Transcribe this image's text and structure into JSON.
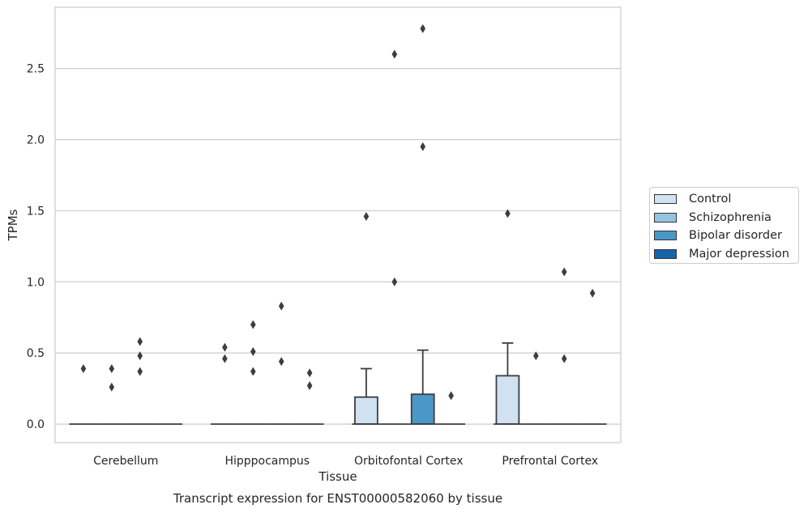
{
  "chart_data": {
    "type": "box",
    "title": "Transcript expression for ENST00000582060 by tissue",
    "xlabel": "Tissue",
    "ylabel": "TPMs",
    "ylim": [
      -0.13,
      2.93
    ],
    "yticks": [
      0.0,
      0.5,
      1.0,
      1.5,
      2.0,
      2.5
    ],
    "ytick_labels": [
      "0.0",
      "0.5",
      "1.0",
      "1.5",
      "2.0",
      "2.5"
    ],
    "grid": true,
    "legend_position": "right",
    "categories": [
      "Cerebellum",
      "Hipppocampus",
      "Orbitofontal Cortex",
      "Prefrontal Cortex"
    ],
    "series": [
      {
        "name": "Control",
        "color": "#d0e1f2",
        "boxes": [
          {
            "q1": 0,
            "median": 0,
            "q3": 0,
            "whisker_low": 0,
            "whisker_high": 0,
            "outliers": [
              0.39
            ]
          },
          {
            "q1": 0,
            "median": 0,
            "q3": 0,
            "whisker_low": 0,
            "whisker_high": 0,
            "outliers": [
              0.46,
              0.54
            ]
          },
          {
            "q1": 0,
            "median": 0,
            "q3": 0.19,
            "whisker_low": 0,
            "whisker_high": 0.39,
            "outliers": [
              1.46
            ]
          },
          {
            "q1": 0,
            "median": 0,
            "q3": 0.34,
            "whisker_low": 0,
            "whisker_high": 0.57,
            "outliers": [
              1.48
            ]
          }
        ]
      },
      {
        "name": "Schizophrenia",
        "color": "#94c4df",
        "boxes": [
          {
            "q1": 0,
            "median": 0,
            "q3": 0,
            "whisker_low": 0,
            "whisker_high": 0,
            "outliers": [
              0.26,
              0.39
            ]
          },
          {
            "q1": 0,
            "median": 0,
            "q3": 0,
            "whisker_low": 0,
            "whisker_high": 0,
            "outliers": [
              0.37,
              0.51,
              0.7
            ]
          },
          {
            "q1": 0,
            "median": 0,
            "q3": 0,
            "whisker_low": 0,
            "whisker_high": 0,
            "outliers": [
              1.0,
              2.6
            ]
          },
          {
            "q1": 0,
            "median": 0,
            "q3": 0,
            "whisker_low": 0,
            "whisker_high": 0,
            "outliers": [
              0.48
            ]
          }
        ]
      },
      {
        "name": "Bipolar disorder",
        "color": "#4a98c9",
        "boxes": [
          {
            "q1": 0,
            "median": 0,
            "q3": 0,
            "whisker_low": 0,
            "whisker_high": 0,
            "outliers": [
              0.37,
              0.48,
              0.58
            ]
          },
          {
            "q1": 0,
            "median": 0,
            "q3": 0,
            "whisker_low": 0,
            "whisker_high": 0,
            "outliers": [
              0.44,
              0.83
            ]
          },
          {
            "q1": 0,
            "median": 0,
            "q3": 0.21,
            "whisker_low": 0,
            "whisker_high": 0.52,
            "outliers": [
              1.95,
              2.78
            ]
          },
          {
            "q1": 0,
            "median": 0,
            "q3": 0,
            "whisker_low": 0,
            "whisker_high": 0,
            "outliers": [
              0.46,
              1.07
            ]
          }
        ]
      },
      {
        "name": "Major depression",
        "color": "#1764ab",
        "boxes": [
          {
            "q1": 0,
            "median": 0,
            "q3": 0,
            "whisker_low": 0,
            "whisker_high": 0,
            "outliers": []
          },
          {
            "q1": 0,
            "median": 0,
            "q3": 0,
            "whisker_low": 0,
            "whisker_high": 0,
            "outliers": [
              0.27,
              0.36
            ]
          },
          {
            "q1": 0,
            "median": 0,
            "q3": 0,
            "whisker_low": 0,
            "whisker_high": 0,
            "outliers": [
              0.2
            ]
          },
          {
            "q1": 0,
            "median": 0,
            "q3": 0,
            "whisker_low": 0,
            "whisker_high": 0,
            "outliers": [
              0.92
            ]
          }
        ]
      }
    ]
  }
}
